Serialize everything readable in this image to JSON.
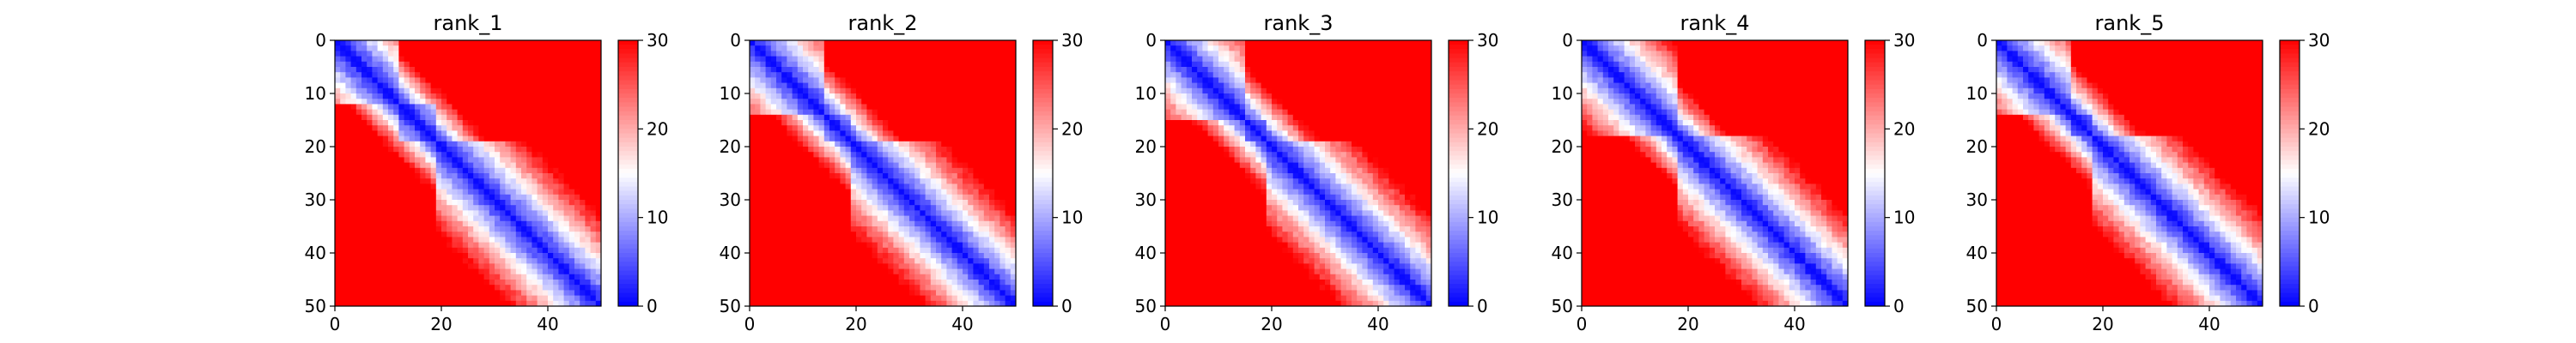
{
  "chart_data": [
    {
      "type": "heatmap",
      "title": "rank_1",
      "xlabel": "",
      "ylabel": "",
      "x_range": [
        0,
        50
      ],
      "y_range": [
        0,
        50
      ],
      "y_inverted": true,
      "x_ticks": [
        "0",
        "20",
        "40"
      ],
      "y_ticks": [
        "0",
        "10",
        "20",
        "30",
        "40",
        "50"
      ],
      "colorbar_ticks": [
        "0",
        "10",
        "20",
        "30"
      ],
      "color_range": [
        0,
        30
      ],
      "colormap": "bwr",
      "colormap_colors": [
        "#0000ff",
        "#ffffff",
        "#ff0000"
      ],
      "domains": [
        [
          0,
          12
        ],
        [
          12,
          19
        ],
        [
          19,
          50
        ]
      ],
      "notes": "pairwise distance map; blue near diagonal, red far"
    },
    {
      "type": "heatmap",
      "title": "rank_2",
      "xlabel": "",
      "ylabel": "",
      "x_range": [
        0,
        50
      ],
      "y_range": [
        0,
        50
      ],
      "y_inverted": true,
      "x_ticks": [
        "0",
        "20",
        "40"
      ],
      "y_ticks": [
        "0",
        "10",
        "20",
        "30",
        "40",
        "50"
      ],
      "colorbar_ticks": [
        "0",
        "10",
        "20",
        "30"
      ],
      "color_range": [
        0,
        30
      ],
      "colormap": "bwr",
      "colormap_colors": [
        "#0000ff",
        "#ffffff",
        "#ff0000"
      ],
      "domains": [
        [
          0,
          14
        ],
        [
          14,
          19
        ],
        [
          19,
          50
        ]
      ]
    },
    {
      "type": "heatmap",
      "title": "rank_3",
      "xlabel": "",
      "ylabel": "",
      "x_range": [
        0,
        50
      ],
      "y_range": [
        0,
        50
      ],
      "y_inverted": true,
      "x_ticks": [
        "0",
        "20",
        "40"
      ],
      "y_ticks": [
        "0",
        "10",
        "20",
        "30",
        "40",
        "50"
      ],
      "colorbar_ticks": [
        "0",
        "10",
        "20",
        "30"
      ],
      "color_range": [
        0,
        30
      ],
      "colormap": "bwr",
      "colormap_colors": [
        "#0000ff",
        "#ffffff",
        "#ff0000"
      ],
      "domains": [
        [
          0,
          15
        ],
        [
          15,
          19
        ],
        [
          19,
          50
        ]
      ]
    },
    {
      "type": "heatmap",
      "title": "rank_4",
      "xlabel": "",
      "ylabel": "",
      "x_range": [
        0,
        50
      ],
      "y_range": [
        0,
        50
      ],
      "y_inverted": true,
      "x_ticks": [
        "0",
        "20",
        "40"
      ],
      "y_ticks": [
        "0",
        "10",
        "20",
        "30",
        "40",
        "50"
      ],
      "colorbar_ticks": [
        "0",
        "10",
        "20",
        "30"
      ],
      "color_range": [
        0,
        30
      ],
      "colormap": "bwr",
      "colormap_colors": [
        "#0000ff",
        "#ffffff",
        "#ff0000"
      ],
      "domains": [
        [
          0,
          18
        ],
        [
          18,
          50
        ]
      ]
    },
    {
      "type": "heatmap",
      "title": "rank_5",
      "xlabel": "",
      "ylabel": "",
      "x_range": [
        0,
        50
      ],
      "y_range": [
        0,
        50
      ],
      "y_inverted": true,
      "x_ticks": [
        "0",
        "20",
        "40"
      ],
      "y_ticks": [
        "0",
        "10",
        "20",
        "30",
        "40",
        "50"
      ],
      "colorbar_ticks": [
        "0",
        "10",
        "20",
        "30"
      ],
      "color_range": [
        0,
        30
      ],
      "colormap": "bwr",
      "colormap_colors": [
        "#0000ff",
        "#ffffff",
        "#ff0000"
      ],
      "domains": [
        [
          0,
          14
        ],
        [
          14,
          18
        ],
        [
          18,
          50
        ]
      ]
    }
  ]
}
